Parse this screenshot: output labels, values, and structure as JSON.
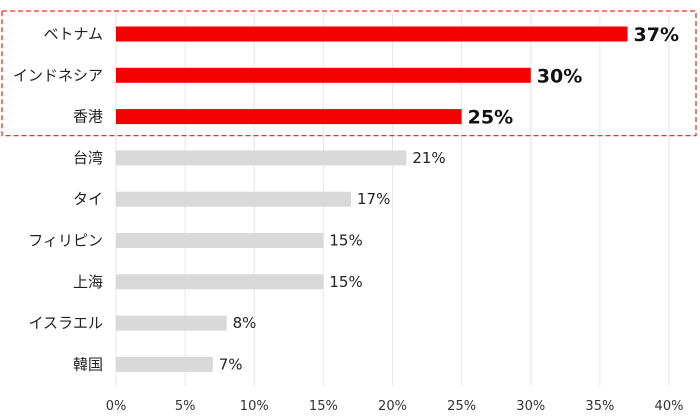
{
  "chart_data": {
    "type": "bar",
    "orientation": "horizontal",
    "categories": [
      "ベトナム",
      "インドネシア",
      "香港",
      "台湾",
      "タイ",
      "フィリピン",
      "上海",
      "イスラエル",
      "韓国"
    ],
    "values": [
      37,
      30,
      25,
      21,
      17,
      15,
      15,
      8,
      7
    ],
    "value_labels": [
      "37%",
      "30%",
      "25%",
      "21%",
      "17%",
      "15%",
      "15%",
      "8%",
      "7%"
    ],
    "highlighted": [
      true,
      true,
      true,
      false,
      false,
      false,
      false,
      false,
      false
    ],
    "xlim": [
      0,
      40
    ],
    "xticks": [
      0,
      5,
      10,
      15,
      20,
      25,
      30,
      35,
      40
    ],
    "xtick_labels": [
      "0%",
      "5%",
      "10%",
      "15%",
      "20%",
      "25%",
      "30%",
      "35%",
      "40%"
    ],
    "grid": "vertical",
    "highlight_box": "dashed red box around top 3 bars",
    "colors": {
      "highlight": "#f50000",
      "normal": "#d9d9d9",
      "grid": "#e6e6e6",
      "box": "#e8332a"
    }
  }
}
